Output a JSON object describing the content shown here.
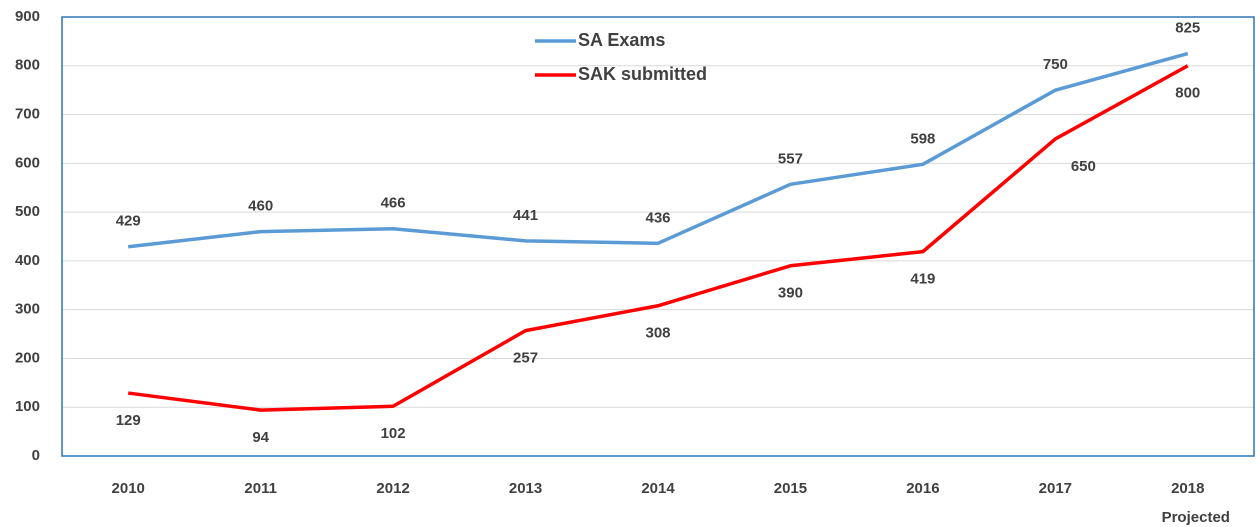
{
  "chart_data": {
    "type": "line",
    "categories": [
      "2010",
      "2011",
      "2012",
      "2013",
      "2014",
      "2015",
      "2016",
      "2017",
      "2018"
    ],
    "annotations": [
      "Projected"
    ],
    "series": [
      {
        "name": "SA Exams",
        "color": "#5b9bd5",
        "values": [
          429,
          460,
          466,
          441,
          436,
          557,
          598,
          750,
          825
        ]
      },
      {
        "name": "SAK submitted",
        "color": "#ff0000",
        "values": [
          129,
          94,
          102,
          257,
          308,
          390,
          419,
          650,
          800
        ]
      }
    ],
    "ylim": [
      0,
      900
    ],
    "yticks": [
      0,
      100,
      200,
      300,
      400,
      500,
      600,
      700,
      800,
      900
    ],
    "grid": true
  }
}
